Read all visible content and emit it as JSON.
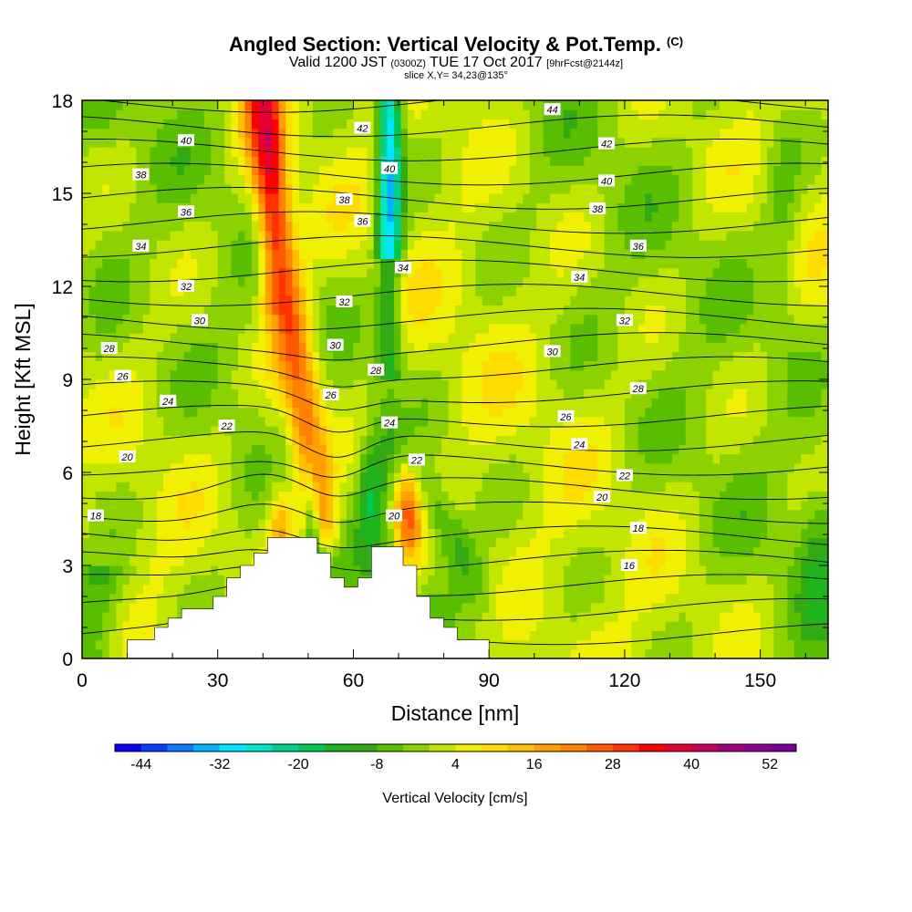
{
  "header": {
    "title": "Angled Section: Vertical Velocity & Pot.Temp.",
    "title_mark": "(C)",
    "valid_main": "Valid 1200 JST",
    "valid_zulu": "(0300Z)",
    "valid_date": "TUE 17 Oct 2017",
    "valid_fcst": "[9hrFcst@2144z]",
    "slice": "slice X,Y= 34,23@135°"
  },
  "chart_data": {
    "type": "heatmap",
    "xlabel": "Distance [nm]",
    "ylabel": "Height [Kft MSL]",
    "xlim": [
      0,
      165
    ],
    "ylim": [
      0,
      18
    ],
    "x_ticks": [
      "0",
      "30",
      "60",
      "90",
      "120",
      "150"
    ],
    "x_tick_values": [
      0,
      30,
      60,
      90,
      120,
      150
    ],
    "y_ticks": [
      "0",
      "3",
      "6",
      "9",
      "12",
      "15",
      "18"
    ],
    "y_tick_values": [
      0,
      3,
      6,
      9,
      12,
      15,
      18
    ],
    "grid": false,
    "colorbar": {
      "title": "Vertical Velocity [cm/s]",
      "labels": [
        "-44",
        "-32",
        "-20",
        "-8",
        "4",
        "16",
        "28",
        "40",
        "52"
      ],
      "min": -48,
      "max": 56,
      "step": 4,
      "colors": [
        "#0a00f5",
        "#0a3cff",
        "#0a78ff",
        "#00b4ff",
        "#00e6ff",
        "#00e6c8",
        "#00d28c",
        "#00c850",
        "#1eb41e",
        "#32aa14",
        "#5abe00",
        "#8cd200",
        "#c3e600",
        "#f0f000",
        "#ffdc00",
        "#ffbe00",
        "#ffa000",
        "#ff8200",
        "#ff5a00",
        "#ff3200",
        "#ff0000",
        "#e60032",
        "#c8005a",
        "#a00078",
        "#8c0096",
        "#780096"
      ]
    },
    "theta_contour_labels": [
      {
        "value": "16",
        "x": 121,
        "y": 3.0
      },
      {
        "value": "18",
        "x": 3,
        "y": 4.6
      },
      {
        "value": "18",
        "x": 123,
        "y": 4.2
      },
      {
        "value": "20",
        "x": 10,
        "y": 6.5
      },
      {
        "value": "20",
        "x": 69,
        "y": 4.6
      },
      {
        "value": "20",
        "x": 115,
        "y": 5.2
      },
      {
        "value": "22",
        "x": 32,
        "y": 7.5
      },
      {
        "value": "22",
        "x": 74,
        "y": 6.4
      },
      {
        "value": "22",
        "x": 120,
        "y": 5.9
      },
      {
        "value": "24",
        "x": 19,
        "y": 8.3
      },
      {
        "value": "24",
        "x": 68,
        "y": 7.6
      },
      {
        "value": "24",
        "x": 110,
        "y": 6.9
      },
      {
        "value": "26",
        "x": 9,
        "y": 9.1
      },
      {
        "value": "26",
        "x": 55,
        "y": 8.5
      },
      {
        "value": "26",
        "x": 107,
        "y": 7.8
      },
      {
        "value": "28",
        "x": 6,
        "y": 10.0
      },
      {
        "value": "28",
        "x": 65,
        "y": 9.3
      },
      {
        "value": "28",
        "x": 123,
        "y": 8.7
      },
      {
        "value": "30",
        "x": 26,
        "y": 10.9
      },
      {
        "value": "30",
        "x": 56,
        "y": 10.1
      },
      {
        "value": "30",
        "x": 104,
        "y": 9.9
      },
      {
        "value": "32",
        "x": 23,
        "y": 12.0
      },
      {
        "value": "32",
        "x": 58,
        "y": 11.5
      },
      {
        "value": "32",
        "x": 120,
        "y": 10.9
      },
      {
        "value": "34",
        "x": 13,
        "y": 13.3
      },
      {
        "value": "34",
        "x": 71,
        "y": 12.6
      },
      {
        "value": "34",
        "x": 110,
        "y": 12.3
      },
      {
        "value": "36",
        "x": 23,
        "y": 14.4
      },
      {
        "value": "36",
        "x": 62,
        "y": 14.1
      },
      {
        "value": "36",
        "x": 123,
        "y": 13.3
      },
      {
        "value": "38",
        "x": 13,
        "y": 15.6
      },
      {
        "value": "38",
        "x": 58,
        "y": 14.8
      },
      {
        "value": "38",
        "x": 114,
        "y": 14.5
      },
      {
        "value": "40",
        "x": 23,
        "y": 16.7
      },
      {
        "value": "40",
        "x": 68,
        "y": 15.8
      },
      {
        "value": "40",
        "x": 116,
        "y": 15.4
      },
      {
        "value": "42",
        "x": 62,
        "y": 17.1
      },
      {
        "value": "42",
        "x": 116,
        "y": 16.6
      },
      {
        "value": "44",
        "x": 104,
        "y": 17.7
      }
    ],
    "terrain": [
      [
        10,
        0
      ],
      [
        10,
        0.6
      ],
      [
        16,
        0.6
      ],
      [
        16,
        1.0
      ],
      [
        19,
        1.0
      ],
      [
        19,
        1.3
      ],
      [
        22,
        1.3
      ],
      [
        22,
        1.6
      ],
      [
        29,
        1.6
      ],
      [
        29,
        2.0
      ],
      [
        32,
        2.0
      ],
      [
        32,
        2.6
      ],
      [
        35,
        2.6
      ],
      [
        35,
        3.0
      ],
      [
        38,
        3.0
      ],
      [
        38,
        3.4
      ],
      [
        41,
        3.4
      ],
      [
        41,
        3.9
      ],
      [
        52,
        3.9
      ],
      [
        52,
        3.4
      ],
      [
        55,
        3.4
      ],
      [
        55,
        2.6
      ],
      [
        58,
        2.6
      ],
      [
        58,
        2.3
      ],
      [
        61,
        2.3
      ],
      [
        61,
        2.6
      ],
      [
        64,
        2.6
      ],
      [
        64,
        3.6
      ],
      [
        71,
        3.6
      ],
      [
        71,
        3.0
      ],
      [
        74,
        3.0
      ],
      [
        74,
        2.0
      ],
      [
        77,
        2.0
      ],
      [
        77,
        1.3
      ],
      [
        80,
        1.3
      ],
      [
        80,
        1.0
      ],
      [
        83,
        1.0
      ],
      [
        83,
        0.6
      ],
      [
        90,
        0.6
      ],
      [
        90,
        0
      ]
    ]
  }
}
